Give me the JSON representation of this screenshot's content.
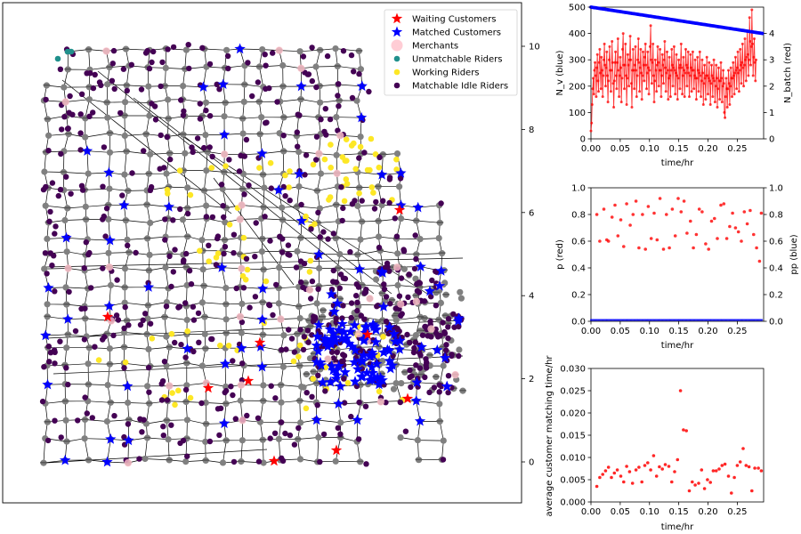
{
  "chart_data": [
    {
      "type": "scatter",
      "title": "",
      "right_axis": {
        "ylim": [
          -0.25,
          11.1
        ],
        "ticks": [
          0,
          2,
          4,
          6,
          8,
          10
        ]
      },
      "legend": {
        "position": "top-right",
        "items": [
          {
            "label": "Waiting Customers",
            "marker": "star",
            "color": "#ff0000"
          },
          {
            "label": "Matched Customers",
            "marker": "star",
            "color": "#0000ff"
          },
          {
            "label": "Merchants",
            "marker": "circle",
            "color": "#ffc0cb"
          },
          {
            "label": "Unmatchable Riders",
            "marker": "circle",
            "color": "#20908c"
          },
          {
            "label": "Working Riders",
            "marker": "circle",
            "color": "#fde725"
          },
          {
            "label": "Matchable Idle Riders",
            "marker": "circle",
            "color": "#440154"
          }
        ]
      },
      "colors": {
        "node": "#808080",
        "edge": "#000000"
      }
    },
    {
      "type": "line",
      "xlabel": "time/hr",
      "ylabel": "N_v (blue)",
      "ylabel_right": "N_batch (red)",
      "xlim": [
        0,
        0.295
      ],
      "ylim": [
        0,
        500
      ],
      "ylim_right": [
        0,
        5
      ],
      "x_ticks": [
        "0.00",
        "0.05",
        "0.10",
        "0.15",
        "0.20",
        "0.25"
      ],
      "y_ticks": [
        "0",
        "100",
        "200",
        "300",
        "400",
        "500"
      ],
      "y_ticks_right": [
        "0",
        "1",
        "2",
        "3",
        "4"
      ],
      "series": [
        {
          "axis": "left",
          "color": "#0000ff",
          "x_start": 0,
          "x_end": 0.293,
          "y_start": 500,
          "y_end": 400,
          "points": 160
        },
        {
          "axis": "right",
          "color": "#ff0000",
          "x_start": 0.0,
          "x_step": 0.001,
          "values": [
            0.3,
            0.6,
            1.3,
            1.9,
            2.3,
            1.7,
            2.6,
            2.9,
            2.4,
            1.6,
            2.7,
            3.2,
            2.2,
            1.8,
            2.9,
            3.4,
            2.5,
            1.9,
            3.1,
            2.6,
            1.6,
            2.4,
            3.0,
            3.6,
            2.8,
            2.0,
            2.7,
            3.3,
            2.4,
            1.4,
            2.2,
            3.0,
            3.5,
            2.6,
            1.8,
            2.6,
            3.7,
            2.9,
            2.1,
            1.2,
            2.2,
            2.9,
            3.3,
            2.4,
            1.9,
            2.9,
            3.8,
            2.6,
            1.6,
            2.4,
            3.1,
            2.7,
            1.4,
            2.3,
            3.4,
            4.0,
            2.8,
            1.9,
            2.8,
            3.6,
            2.4,
            1.3,
            2.3,
            3.2,
            2.8,
            2.0,
            3.0,
            3.9,
            3.0,
            2.1,
            1.2,
            2.6,
            3.4,
            2.6,
            1.9,
            2.8,
            3.5,
            2.6,
            1.6,
            2.4,
            3.0,
            3.8,
            2.9,
            1.8,
            2.7,
            3.4,
            2.5,
            1.5,
            2.4,
            3.3,
            2.8,
            2.2,
            3.1,
            3.6,
            2.8,
            1.9,
            2.5,
            3.3,
            2.7,
            1.7,
            2.6,
            3.5,
            4.3,
            3.0,
            2.1,
            2.9,
            3.6,
            2.4,
            1.4,
            2.2,
            3.0,
            2.6,
            1.8,
            2.8,
            3.5,
            2.9,
            2.0,
            2.6,
            3.4,
            2.6,
            1.6,
            2.4,
            3.2,
            2.8,
            2.1,
            3.0,
            3.7,
            2.7,
            1.8,
            2.5,
            3.3,
            2.6,
            1.5,
            2.3,
            3.1,
            2.4,
            1.6,
            2.6,
            3.4,
            2.8,
            2.0,
            2.7,
            3.5,
            2.6,
            1.7,
            2.5,
            3.2,
            2.4,
            1.5,
            2.3,
            3.0,
            2.7,
            1.9,
            2.8,
            3.6,
            2.7,
            1.7,
            2.4,
            3.1,
            2.6,
            1.6,
            2.5,
            3.4,
            2.8,
            2.0,
            2.7,
            3.3,
            2.5,
            1.6,
            2.4,
            3.2,
            2.7,
            1.8,
            2.6,
            3.3,
            2.6,
            1.9,
            2.4,
            3.0,
            2.3,
            1.5,
            2.3,
            3.1,
            2.6,
            1.8,
            2.5,
            3.3,
            2.4,
            1.6,
            2.2,
            3.0,
            2.5,
            1.3,
            2.1,
            2.8,
            2.3,
            1.5,
            2.4,
            3.1,
            2.4,
            1.7,
            2.3,
            2.9,
            2.2,
            1.3,
            2.1,
            2.8,
            2.4,
            1.6,
            2.3,
            3.0,
            2.2,
            1.4,
            2.0,
            2.8,
            2.3,
            1.2,
            1.9,
            2.7,
            2.2,
            1.5,
            2.2,
            2.9,
            2.3,
            1.4,
            2.0,
            2.6,
            2.1,
            1.0,
            0.8,
            1.6,
            2.3,
            1.9,
            1.2,
            1.9,
            2.6,
            2.1,
            1.3,
            2.0,
            2.7,
            2.3,
            1.6,
            2.3,
            2.9,
            2.4,
            1.7,
            2.5,
            3.1,
            2.6,
            1.9,
            2.7,
            3.3,
            2.5,
            1.8,
            2.6,
            3.4,
            2.8,
            2.1,
            2.9,
            3.6,
            2.7,
            2.0,
            2.8,
            3.8,
            3.0,
            2.2,
            3.1,
            4.1,
            3.2,
            2.4,
            3.0,
            4.6,
            3.7,
            2.8,
            3.5,
            4.9,
            3.6,
            2.4,
            3.1,
            3.8,
            2.9,
            2.2,
            3.0
          ]
        }
      ]
    },
    {
      "type": "scatter",
      "xlabel": "time/hr",
      "ylabel": "p (red)",
      "ylabel_right": "pp (blue)",
      "xlim": [
        0,
        0.295
      ],
      "ylim": [
        0,
        1.0
      ],
      "ylim_right": [
        0,
        1.0
      ],
      "x_ticks": [
        "0.00",
        "0.05",
        "0.10",
        "0.15",
        "0.20",
        "0.25"
      ],
      "y_ticks": [
        "0.0",
        "0.2",
        "0.4",
        "0.6",
        "0.8",
        "1.0"
      ],
      "y_ticks_right": [
        "0.0",
        "0.2",
        "0.4",
        "0.6",
        "0.8",
        "1.0"
      ],
      "series": [
        {
          "axis": "left",
          "color": "#ff0000",
          "x": [
            0.01,
            0.015,
            0.022,
            0.027,
            0.03,
            0.036,
            0.041,
            0.046,
            0.051,
            0.056,
            0.061,
            0.067,
            0.072,
            0.077,
            0.082,
            0.088,
            0.093,
            0.098,
            0.103,
            0.108,
            0.113,
            0.118,
            0.124,
            0.129,
            0.134,
            0.139,
            0.144,
            0.149,
            0.154,
            0.159,
            0.164,
            0.17,
            0.175,
            0.18,
            0.185,
            0.19,
            0.196,
            0.201,
            0.206,
            0.211,
            0.216,
            0.222,
            0.227,
            0.232,
            0.237,
            0.242,
            0.247,
            0.252,
            0.257,
            0.262,
            0.267,
            0.272,
            0.278,
            0.283,
            0.288,
            0.291
          ],
          "y": [
            0.8,
            0.6,
            0.84,
            0.61,
            0.6,
            0.78,
            0.87,
            0.64,
            0.76,
            0.56,
            0.88,
            0.72,
            0.8,
            0.9,
            0.55,
            0.8,
            0.54,
            0.86,
            0.62,
            0.81,
            0.61,
            0.92,
            0.54,
            0.8,
            0.55,
            0.84,
            0.64,
            0.92,
            0.82,
            0.9,
            0.66,
            0.75,
            0.55,
            0.65,
            0.84,
            0.82,
            0.58,
            0.54,
            0.75,
            0.77,
            0.62,
            0.87,
            0.88,
            0.62,
            0.71,
            0.81,
            0.7,
            0.67,
            0.6,
            0.82,
            0.73,
            0.83,
            0.65,
            0.55,
            0.45,
            0.81
          ]
        },
        {
          "axis": "right",
          "color": "#0000ff",
          "constant_y": 0.01
        }
      ]
    },
    {
      "type": "scatter",
      "xlabel": "time/hr",
      "ylabel": "average customer matching time/hr",
      "xlim": [
        0,
        0.295
      ],
      "ylim": [
        0,
        0.03
      ],
      "x_ticks": [
        "0.00",
        "0.05",
        "0.10",
        "0.15",
        "0.20",
        "0.25"
      ],
      "y_ticks": [
        "0.000",
        "0.005",
        "0.010",
        "0.015",
        "0.020",
        "0.025",
        "0.030"
      ],
      "series": [
        {
          "color": "#ff0000",
          "x": [
            0.01,
            0.015,
            0.02,
            0.025,
            0.03,
            0.035,
            0.04,
            0.045,
            0.051,
            0.056,
            0.061,
            0.066,
            0.071,
            0.077,
            0.082,
            0.087,
            0.092,
            0.097,
            0.102,
            0.107,
            0.112,
            0.117,
            0.122,
            0.127,
            0.133,
            0.138,
            0.143,
            0.148,
            0.153,
            0.158,
            0.163,
            0.168,
            0.173,
            0.178,
            0.184,
            0.189,
            0.194,
            0.199,
            0.204,
            0.209,
            0.214,
            0.219,
            0.224,
            0.229,
            0.235,
            0.24,
            0.245,
            0.25,
            0.255,
            0.26,
            0.265,
            0.27,
            0.275,
            0.28,
            0.286,
            0.291
          ],
          "y": [
            0.0035,
            0.0055,
            0.0062,
            0.007,
            0.0078,
            0.0055,
            0.0065,
            0.0072,
            0.0058,
            0.0045,
            0.008,
            0.0068,
            0.0042,
            0.0072,
            0.0078,
            0.0045,
            0.0082,
            0.0088,
            0.0072,
            0.0104,
            0.0058,
            0.0079,
            0.0074,
            0.0084,
            0.008,
            0.0045,
            0.0068,
            0.0095,
            0.025,
            0.0162,
            0.016,
            0.0025,
            0.0045,
            0.0038,
            0.0042,
            0.0072,
            0.003,
            0.005,
            0.0044,
            0.007,
            0.007,
            0.0074,
            0.0082,
            0.0085,
            0.0058,
            0.002,
            0.0055,
            0.0082,
            0.009,
            0.012,
            0.0082,
            0.0079,
            0.0025,
            0.0076,
            0.0076,
            0.007
          ]
        }
      ]
    }
  ]
}
